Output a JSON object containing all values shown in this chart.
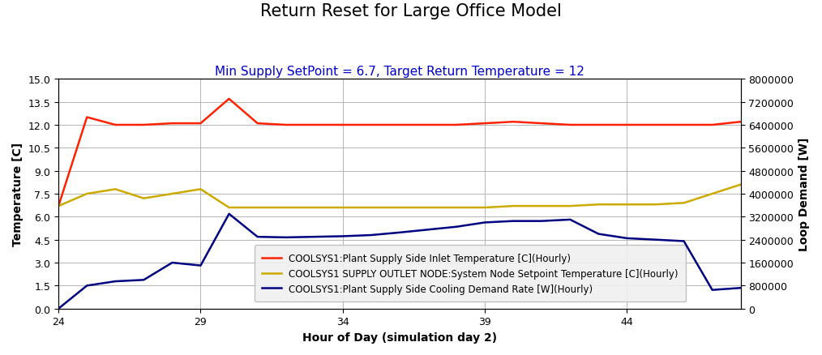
{
  "title": "Return Reset for Large Office Model",
  "subtitle": "Min Supply SetPoint = 6.7, Target Return Temperature = 12",
  "xlabel": "Hour of Day (simulation day 2)",
  "ylabel_left": "Temperature [C]",
  "ylabel_right": "Loop Demand [W]",
  "xlim": [
    24,
    48
  ],
  "ylim_left": [
    0.0,
    15.0
  ],
  "ylim_right": [
    0,
    8000000
  ],
  "xticks": [
    24,
    29,
    34,
    39,
    44
  ],
  "yticks_left": [
    0.0,
    1.5,
    3.0,
    4.5,
    6.0,
    7.5,
    9.0,
    10.5,
    12.0,
    13.5,
    15.0
  ],
  "yticks_right": [
    0,
    800000,
    1600000,
    2400000,
    3200000,
    4000000,
    4800000,
    5600000,
    6400000,
    7200000,
    8000000
  ],
  "red_x": [
    24,
    25,
    26,
    27,
    28,
    29,
    30,
    31,
    32,
    33,
    34,
    35,
    36,
    37,
    38,
    39,
    40,
    41,
    42,
    43,
    44,
    45,
    46,
    47,
    48
  ],
  "red_y": [
    6.7,
    12.5,
    12.0,
    12.0,
    12.1,
    12.1,
    13.7,
    12.1,
    12.0,
    12.0,
    12.0,
    12.0,
    12.0,
    12.0,
    12.0,
    12.1,
    12.2,
    12.1,
    12.0,
    12.0,
    12.0,
    12.0,
    12.0,
    12.0,
    12.2
  ],
  "yellow_x": [
    24,
    25,
    26,
    27,
    28,
    29,
    30,
    31,
    32,
    33,
    34,
    35,
    36,
    37,
    38,
    39,
    40,
    41,
    42,
    43,
    44,
    45,
    46,
    47,
    48
  ],
  "yellow_y": [
    6.7,
    7.5,
    7.8,
    7.2,
    7.5,
    7.8,
    6.6,
    6.6,
    6.6,
    6.6,
    6.6,
    6.6,
    6.6,
    6.6,
    6.6,
    6.6,
    6.7,
    6.7,
    6.7,
    6.8,
    6.8,
    6.8,
    6.9,
    7.5,
    8.1
  ],
  "blue_x": [
    24,
    25,
    26,
    27,
    28,
    29,
    30,
    31,
    32,
    33,
    34,
    35,
    36,
    37,
    38,
    39,
    40,
    41,
    42,
    43,
    44,
    45,
    46,
    47,
    48
  ],
  "blue_y": [
    0,
    800000,
    950000,
    1000000,
    1600000,
    1500000,
    3300000,
    2500000,
    2480000,
    2500000,
    2520000,
    2560000,
    2650000,
    2750000,
    2850000,
    3000000,
    3050000,
    3050000,
    3100000,
    2600000,
    2450000,
    2400000,
    2350000,
    650000,
    720000
  ],
  "red_color": "#FF2200",
  "yellow_color": "#CCAA00",
  "blue_color": "#000080",
  "legend_labels": [
    "COOLSYS1:Plant Supply Side Inlet Temperature [C](Hourly)",
    "COOLSYS1 SUPPLY OUTLET NODE:System Node Setpoint Temperature [C](Hourly)",
    "COOLSYS1:Plant Supply Side Cooling Demand Rate [W](Hourly)"
  ],
  "background_color": "#ffffff",
  "grid_color": "#aaaaaa",
  "title_fontsize": 15,
  "subtitle_fontsize": 11,
  "subtitle_color": "#0000CC",
  "axis_label_fontsize": 10,
  "tick_fontsize": 9,
  "legend_fontsize": 8.5,
  "line_width": 1.8
}
